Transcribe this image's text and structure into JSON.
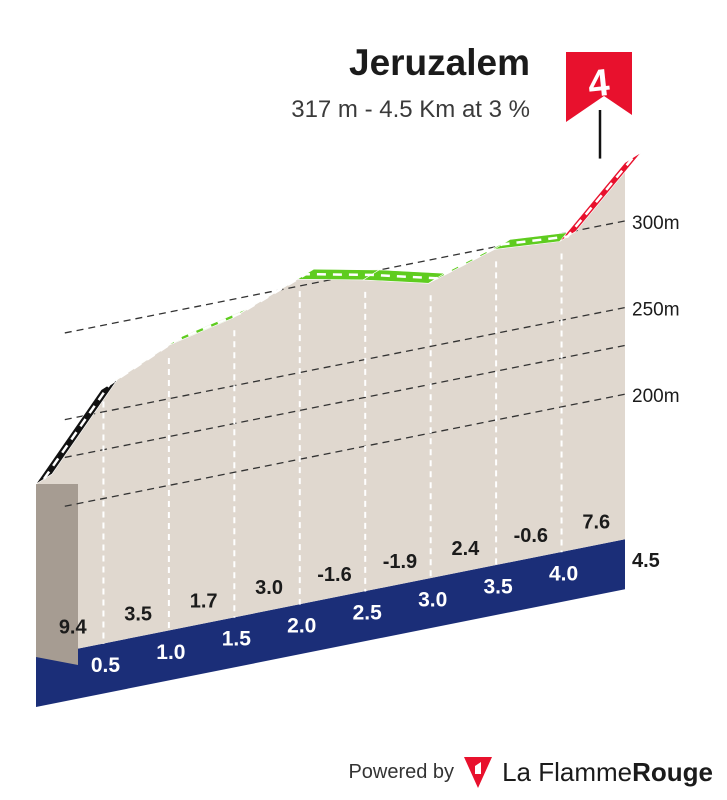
{
  "chart_data": {
    "type": "area",
    "title": "Jeruzalem",
    "subtitle": "317 m - 4.5 Km at 3 %",
    "category_marker": "4",
    "xlabel": "",
    "ylabel": "",
    "x_tick_labels": [
      "0.5",
      "1.0",
      "1.5",
      "2.0",
      "2.5",
      "3.0",
      "3.5",
      "4.0"
    ],
    "x_tick_values": [
      0.5,
      1.0,
      1.5,
      2.0,
      2.5,
      3.0,
      3.5,
      4.0
    ],
    "end_distance_label": "4.5",
    "end_distance": 4.5,
    "y_tick_labels": [
      "200m",
      "250m",
      "300m"
    ],
    "y_tick_values": [
      200,
      250,
      300
    ],
    "y_range": [
      175,
      330
    ],
    "x_range": [
      0,
      4.5
    ],
    "grid": true,
    "segments": [
      {
        "from_km": 0.0,
        "to_km": 0.5,
        "gradient": 9.4,
        "gradient_label": "9.4",
        "color": "#111111"
      },
      {
        "from_km": 0.5,
        "to_km": 1.0,
        "gradient": 3.5,
        "gradient_label": "3.5",
        "color": "#5fcc1f"
      },
      {
        "from_km": 1.0,
        "to_km": 1.5,
        "gradient": 1.7,
        "gradient_label": "1.7",
        "color": "#5fcc1f"
      },
      {
        "from_km": 1.5,
        "to_km": 2.0,
        "gradient": 3.0,
        "gradient_label": "3.0",
        "color": "#5fcc1f"
      },
      {
        "from_km": 2.0,
        "to_km": 2.5,
        "gradient": -1.6,
        "gradient_label": "-1.6",
        "color": "#5fcc1f"
      },
      {
        "from_km": 2.5,
        "to_km": 3.0,
        "gradient": -1.9,
        "gradient_label": "-1.9",
        "color": "#5fcc1f"
      },
      {
        "from_km": 3.0,
        "to_km": 3.5,
        "gradient": 2.4,
        "gradient_label": "2.4",
        "color": "#5fcc1f"
      },
      {
        "from_km": 3.5,
        "to_km": 4.0,
        "gradient": -0.6,
        "gradient_label": "-0.6",
        "color": "#5fcc1f"
      },
      {
        "from_km": 4.0,
        "to_km": 4.5,
        "gradient": 7.6,
        "gradient_label": "7.6",
        "color": "#e8112d"
      }
    ]
  },
  "footer": {
    "powered_by": "Powered by",
    "brand_regular": "La Flamme",
    "brand_bold": "Rouge"
  },
  "colors": {
    "road_band": "#1b2e78",
    "profile_fill": "#e0d8cf",
    "start_face": "#a69c92",
    "flag": "#e8112d",
    "green": "#5fcc1f",
    "black": "#111111",
    "red": "#e8112d"
  },
  "icons": [
    "flame-rouge-logo-icon",
    "category-flag-icon"
  ]
}
